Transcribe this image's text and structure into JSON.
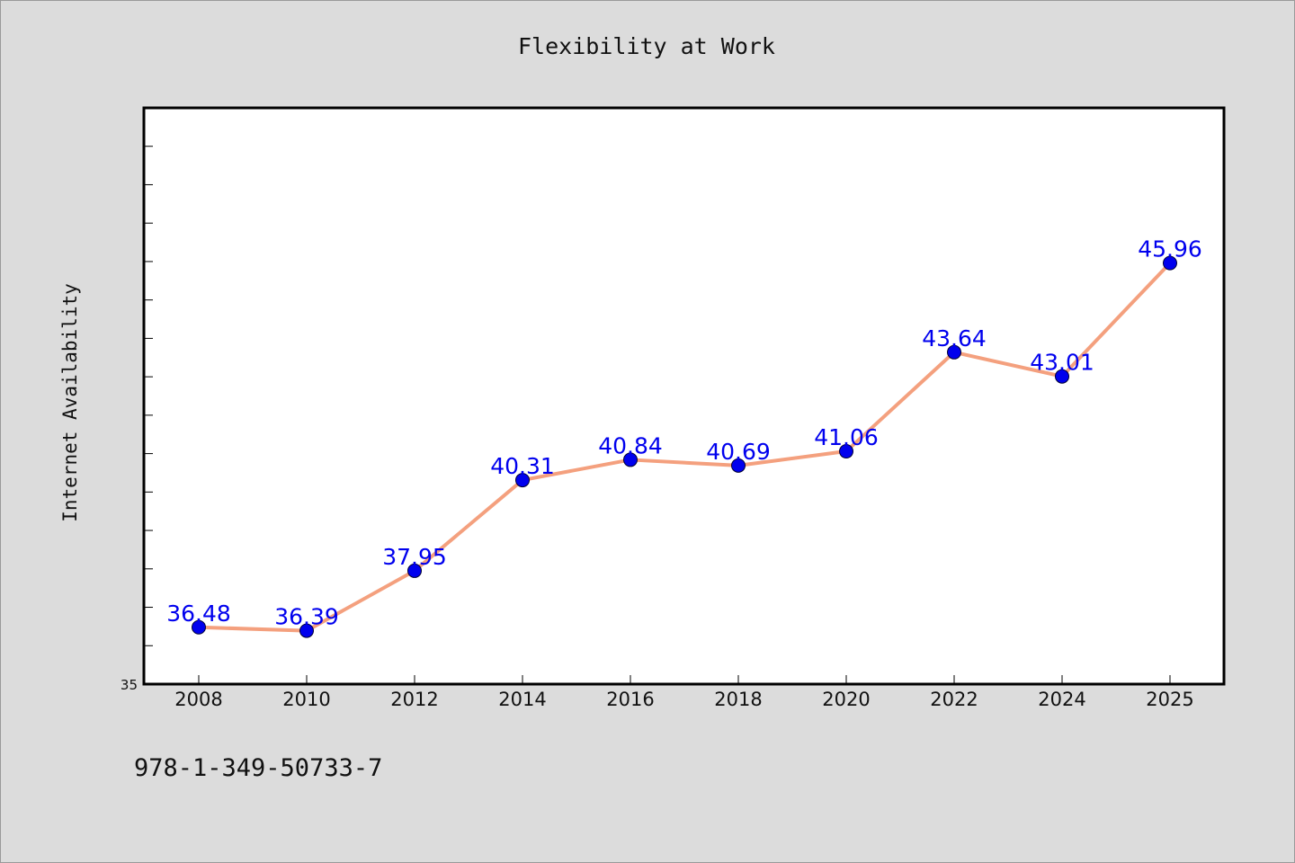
{
  "chart_data": {
    "type": "line",
    "title": "Flexibility at Work",
    "xlabel": "",
    "ylabel": "Internet Availability",
    "categories": [
      "2008",
      "2010",
      "2012",
      "2014",
      "2016",
      "2018",
      "2020",
      "2022",
      "2024",
      "2025"
    ],
    "series": [
      {
        "values": [
          36.48,
          36.39,
          37.95,
          40.31,
          40.84,
          40.69,
          41.06,
          43.64,
          43.01,
          45.96
        ],
        "labels": [
          "36.48",
          "36.39",
          "37.95",
          "40.31",
          "40.84",
          "40.69",
          "41.06",
          "43.64",
          "43.01",
          "45.96"
        ],
        "line_color": "#f4a07e",
        "marker_color": "#0000ee"
      }
    ],
    "ylim": [
      35,
      50
    ],
    "ytick_labels": [
      "35"
    ],
    "ytick_step": 1,
    "grid": false,
    "legend": "none"
  },
  "footer": {
    "text": "978-1-349-50733-7"
  },
  "colors": {
    "background": "#dcdcdc",
    "plot_background": "#ffffff",
    "line": "#f4a07e",
    "marker": "#0000ee",
    "data_label": "#0000ee"
  }
}
